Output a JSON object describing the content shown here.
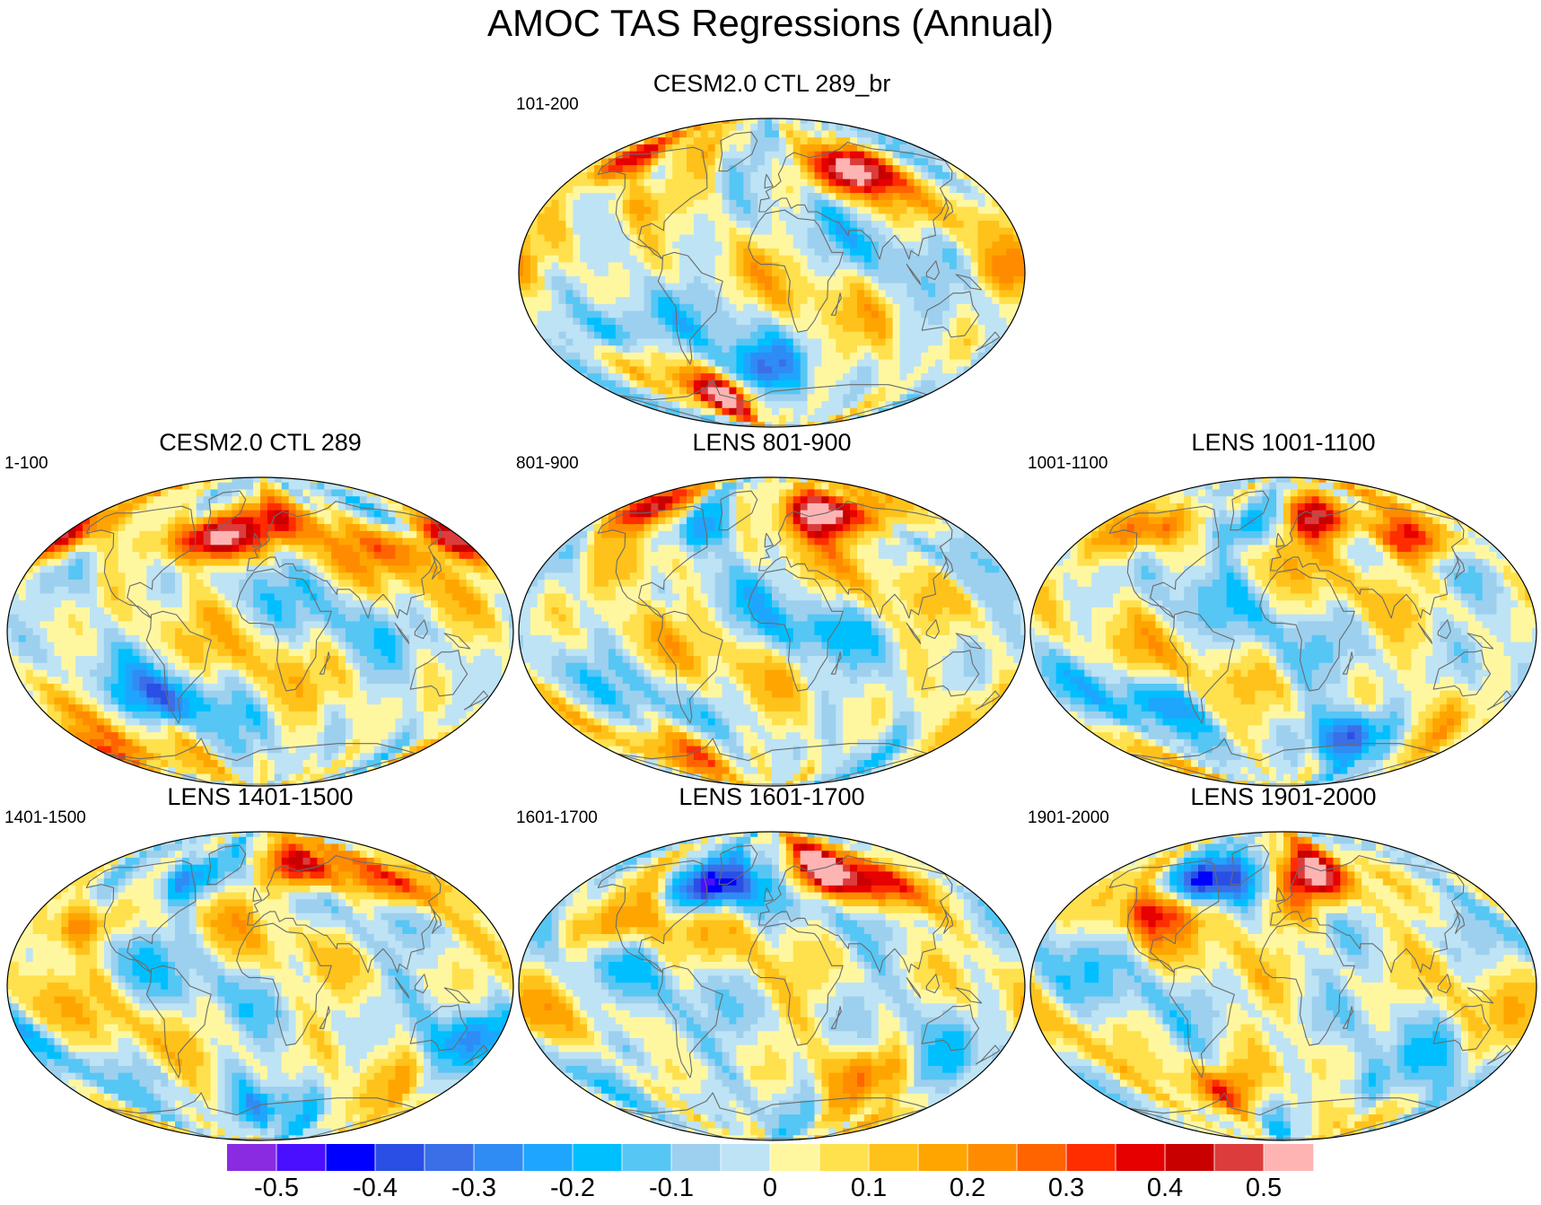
{
  "title": "AMOC TAS Regressions (Annual)",
  "panels": [
    {
      "id": "top",
      "title": "CESM2.0 CTL 289_br",
      "left_label": "101-200",
      "seed": 1,
      "hotspots": [
        {
          "lon": 75,
          "lat": 60,
          "v": 0.58
        },
        {
          "lon": -150,
          "lat": 65,
          "v": 0.42
        },
        {
          "lon": -110,
          "lat": 40,
          "v": 0.2
        },
        {
          "lon": -120,
          "lat": -35,
          "v": -0.22
        },
        {
          "lon": -60,
          "lat": -72,
          "v": 0.45
        },
        {
          "lon": -20,
          "lat": -58,
          "v": -0.28
        },
        {
          "lon": 160,
          "lat": 0,
          "v": 0.18
        },
        {
          "lon": -40,
          "lat": 60,
          "v": -0.06
        }
      ]
    },
    {
      "id": "c289",
      "title": "CESM2.0 CTL 289",
      "left_label": "1-100",
      "seed": 2,
      "hotspots": [
        {
          "lon": -40,
          "lat": 55,
          "v": 0.6
        },
        {
          "lon": 20,
          "lat": 65,
          "v": 0.35
        },
        {
          "lon": 110,
          "lat": 50,
          "v": 0.22
        },
        {
          "lon": -170,
          "lat": 55,
          "v": 0.22
        },
        {
          "lon": -80,
          "lat": -40,
          "v": -0.22
        },
        {
          "lon": -170,
          "lat": -72,
          "v": 0.32
        },
        {
          "lon": 170,
          "lat": 55,
          "v": 0.4
        },
        {
          "lon": -90,
          "lat": 70,
          "v": -0.12
        }
      ]
    },
    {
      "id": "l801",
      "title": "LENS 801-900",
      "left_label": "801-900",
      "seed": 3,
      "hotspots": [
        {
          "lon": 50,
          "lat": 70,
          "v": 0.62
        },
        {
          "lon": -60,
          "lat": 60,
          "v": -0.2
        },
        {
          "lon": 100,
          "lat": 70,
          "v": 0.4
        },
        {
          "lon": -140,
          "lat": 75,
          "v": 0.38
        },
        {
          "lon": -80,
          "lat": -72,
          "v": 0.28
        },
        {
          "lon": 30,
          "lat": 0,
          "v": -0.1
        },
        {
          "lon": -100,
          "lat": 40,
          "v": 0.15
        }
      ]
    },
    {
      "id": "l1001",
      "title": "LENS 1001-1100",
      "left_label": "1001-1100",
      "seed": 4,
      "hotspots": [
        {
          "lon": 40,
          "lat": 68,
          "v": 0.58
        },
        {
          "lon": -40,
          "lat": 62,
          "v": -0.25
        },
        {
          "lon": 110,
          "lat": 55,
          "v": 0.45
        },
        {
          "lon": -120,
          "lat": 60,
          "v": 0.3
        },
        {
          "lon": 60,
          "lat": -60,
          "v": -0.32
        },
        {
          "lon": -100,
          "lat": -40,
          "v": -0.15
        }
      ]
    },
    {
      "id": "l1401",
      "title": "LENS 1401-1500",
      "left_label": "1401-1500",
      "seed": 5,
      "hotspots": [
        {
          "lon": 40,
          "lat": 70,
          "v": 0.6
        },
        {
          "lon": -70,
          "lat": 62,
          "v": -0.3
        },
        {
          "lon": -140,
          "lat": 35,
          "v": 0.25
        },
        {
          "lon": 120,
          "lat": 60,
          "v": 0.3
        },
        {
          "lon": 0,
          "lat": -72,
          "v": -0.22
        },
        {
          "lon": 150,
          "lat": -30,
          "v": -0.15
        }
      ]
    },
    {
      "id": "l1601",
      "title": "LENS 1601-1700",
      "left_label": "1601-1700",
      "seed": 6,
      "hotspots": [
        {
          "lon": -55,
          "lat": 58,
          "v": -0.52
        },
        {
          "lon": 50,
          "lat": 68,
          "v": 0.58
        },
        {
          "lon": 100,
          "lat": 60,
          "v": 0.35
        },
        {
          "lon": -120,
          "lat": 35,
          "v": 0.22
        },
        {
          "lon": -100,
          "lat": -35,
          "v": -0.15
        },
        {
          "lon": 80,
          "lat": -50,
          "v": 0.12
        }
      ]
    },
    {
      "id": "l1901",
      "title": "LENS 1901-2000",
      "left_label": "1901-2000",
      "seed": 7,
      "hotspots": [
        {
          "lon": -75,
          "lat": 60,
          "v": -0.48
        },
        {
          "lon": 30,
          "lat": 65,
          "v": 0.5
        },
        {
          "lon": -100,
          "lat": 45,
          "v": 0.3
        },
        {
          "lon": -60,
          "lat": -62,
          "v": 0.35
        },
        {
          "lon": 0,
          "lat": 45,
          "v": 0.2
        },
        {
          "lon": 60,
          "lat": -60,
          "v": -0.2
        }
      ]
    }
  ],
  "colorbar": {
    "colors": [
      "#8a2be2",
      "#4b0fff",
      "#0000ff",
      "#2a4fe5",
      "#3a6fe8",
      "#2f8cf5",
      "#1ea6ff",
      "#00bfff",
      "#56c6f5",
      "#9dd0ee",
      "#bde3f5",
      "#fff7a0",
      "#ffe04d",
      "#ffc21a",
      "#ffa500",
      "#ff8c00",
      "#ff6400",
      "#ff2d00",
      "#e60000",
      "#c80000",
      "#dc3c3c",
      "#ffb4b4"
    ],
    "levels": [
      -0.55,
      -0.5,
      -0.45,
      -0.4,
      -0.35,
      -0.3,
      -0.25,
      -0.2,
      -0.15,
      -0.1,
      -0.05,
      0,
      0.05,
      0.1,
      0.15,
      0.2,
      0.25,
      0.3,
      0.35,
      0.4,
      0.45,
      0.5,
      0.55
    ],
    "ticks": [
      {
        "value": -0.5,
        "label": "-0.5"
      },
      {
        "value": -0.4,
        "label": "-0.4"
      },
      {
        "value": -0.3,
        "label": "-0.3"
      },
      {
        "value": -0.2,
        "label": "-0.2"
      },
      {
        "value": -0.1,
        "label": "-0.1"
      },
      {
        "value": 0,
        "label": "0"
      },
      {
        "value": 0.1,
        "label": "0.1"
      },
      {
        "value": 0.2,
        "label": "0.2"
      },
      {
        "value": 0.3,
        "label": "0.3"
      },
      {
        "value": 0.4,
        "label": "0.4"
      },
      {
        "value": 0.5,
        "label": "0.5"
      }
    ]
  },
  "continents": [
    [
      [
        -165,
        68
      ],
      [
        -160,
        70
      ],
      [
        -140,
        70
      ],
      [
        -120,
        72
      ],
      [
        -95,
        74
      ],
      [
        -80,
        72
      ],
      [
        -70,
        66
      ],
      [
        -60,
        58
      ],
      [
        -55,
        50
      ],
      [
        -66,
        44
      ],
      [
        -76,
        36
      ],
      [
        -81,
        30
      ],
      [
        -80,
        25
      ],
      [
        -90,
        29
      ],
      [
        -97,
        27
      ],
      [
        -97,
        20
      ],
      [
        -92,
        17
      ],
      [
        -84,
        11
      ],
      [
        -78,
        8
      ],
      [
        -82,
        12
      ],
      [
        -88,
        15
      ],
      [
        -95,
        16
      ],
      [
        -105,
        20
      ],
      [
        -110,
        24
      ],
      [
        -115,
        30
      ],
      [
        -120,
        35
      ],
      [
        -124,
        42
      ],
      [
        -125,
        50
      ],
      [
        -135,
        58
      ],
      [
        -150,
        60
      ],
      [
        -160,
        58
      ],
      [
        -165,
        62
      ]
    ],
    [
      [
        -78,
        10
      ],
      [
        -70,
        12
      ],
      [
        -60,
        10
      ],
      [
        -50,
        0
      ],
      [
        -35,
        -5
      ],
      [
        -38,
        -13
      ],
      [
        -41,
        -23
      ],
      [
        -48,
        -28
      ],
      [
        -58,
        -35
      ],
      [
        -65,
        -40
      ],
      [
        -68,
        -50
      ],
      [
        -72,
        -54
      ],
      [
        -74,
        -45
      ],
      [
        -73,
        -35
      ],
      [
        -70,
        -20
      ],
      [
        -76,
        -12
      ],
      [
        -81,
        -5
      ],
      [
        -78,
        2
      ]
    ],
    [
      [
        -17,
        15
      ],
      [
        -15,
        22
      ],
      [
        -10,
        30
      ],
      [
        -5,
        35
      ],
      [
        10,
        37
      ],
      [
        20,
        32
      ],
      [
        32,
        31
      ],
      [
        35,
        28
      ],
      [
        43,
        12
      ],
      [
        51,
        12
      ],
      [
        48,
        5
      ],
      [
        40,
        -5
      ],
      [
        40,
        -15
      ],
      [
        35,
        -22
      ],
      [
        32,
        -28
      ],
      [
        27,
        -34
      ],
      [
        20,
        -35
      ],
      [
        17,
        -30
      ],
      [
        12,
        -17
      ],
      [
        13,
        -5
      ],
      [
        9,
        4
      ],
      [
        0,
        5
      ],
      [
        -8,
        5
      ],
      [
        -13,
        8
      ]
    ],
    [
      [
        -10,
        36
      ],
      [
        -9,
        43
      ],
      [
        -2,
        44
      ],
      [
        -5,
        48
      ],
      [
        3,
        51
      ],
      [
        8,
        54
      ],
      [
        6,
        58
      ],
      [
        10,
        62
      ],
      [
        15,
        68
      ],
      [
        25,
        71
      ],
      [
        40,
        68
      ],
      [
        60,
        70
      ],
      [
        80,
        73
      ],
      [
        100,
        77
      ],
      [
        120,
        73
      ],
      [
        140,
        72
      ],
      [
        160,
        70
      ],
      [
        178,
        66
      ],
      [
        170,
        60
      ],
      [
        160,
        55
      ],
      [
        143,
        50
      ],
      [
        140,
        42
      ],
      [
        130,
        35
      ],
      [
        122,
        31
      ],
      [
        120,
        22
      ],
      [
        110,
        20
      ],
      [
        105,
        10
      ],
      [
        100,
        13
      ],
      [
        98,
        8
      ],
      [
        95,
        16
      ],
      [
        90,
        22
      ],
      [
        80,
        15
      ],
      [
        77,
        8
      ],
      [
        72,
        20
      ],
      [
        66,
        25
      ],
      [
        57,
        25
      ],
      [
        56,
        22
      ],
      [
        50,
        30
      ],
      [
        48,
        30
      ],
      [
        35,
        36
      ],
      [
        28,
        36
      ],
      [
        26,
        40
      ],
      [
        20,
        40
      ],
      [
        15,
        38
      ],
      [
        12,
        44
      ],
      [
        8,
        44
      ],
      [
        3,
        42
      ],
      [
        -5,
        36
      ]
    ],
    [
      [
        114,
        -22
      ],
      [
        122,
        -18
      ],
      [
        130,
        -12
      ],
      [
        137,
        -12
      ],
      [
        142,
        -11
      ],
      [
        146,
        -19
      ],
      [
        153,
        -25
      ],
      [
        150,
        -37
      ],
      [
        140,
        -38
      ],
      [
        135,
        -34
      ],
      [
        130,
        -32
      ],
      [
        115,
        -34
      ],
      [
        114,
        -26
      ]
    ],
    [
      [
        -50,
        60
      ],
      [
        -42,
        60
      ],
      [
        -22,
        70
      ],
      [
        -20,
        78
      ],
      [
        -35,
        83
      ],
      [
        -60,
        82
      ],
      [
        -70,
        78
      ],
      [
        -55,
        70
      ]
    ],
    [
      [
        -180,
        -72
      ],
      [
        -150,
        -75
      ],
      [
        -100,
        -73
      ],
      [
        -70,
        -68
      ],
      [
        -58,
        -63
      ],
      [
        -60,
        -72
      ],
      [
        -30,
        -76
      ],
      [
        0,
        -70
      ],
      [
        40,
        -68
      ],
      [
        80,
        -66
      ],
      [
        120,
        -66
      ],
      [
        160,
        -70
      ],
      [
        180,
        -72
      ],
      [
        180,
        -90
      ],
      [
        -180,
        -90
      ]
    ],
    [
      [
        -6,
        50
      ],
      [
        1,
        51
      ],
      [
        -3,
        56
      ],
      [
        -5,
        58
      ],
      [
        -6,
        54
      ]
    ],
    [
      [
        130,
        31
      ],
      [
        135,
        34
      ],
      [
        140,
        36
      ],
      [
        142,
        40
      ],
      [
        141,
        45
      ],
      [
        138,
        38
      ],
      [
        132,
        33
      ]
    ],
    [
      [
        44,
        -25
      ],
      [
        50,
        -15
      ],
      [
        49,
        -12
      ],
      [
        47,
        -25
      ]
    ],
    [
      [
        96,
        5
      ],
      [
        105,
        -5
      ],
      [
        106,
        -7
      ],
      [
        101,
        -2
      ]
    ],
    [
      [
        110,
        0
      ],
      [
        117,
        7
      ],
      [
        119,
        0
      ],
      [
        116,
        -4
      ],
      [
        110,
        -2
      ]
    ],
    [
      [
        131,
        -1
      ],
      [
        141,
        -3
      ],
      [
        150,
        -10
      ],
      [
        142,
        -9
      ],
      [
        137,
        -5
      ]
    ],
    [
      [
        172,
        -35
      ],
      [
        178,
        -38
      ],
      [
        175,
        -41
      ],
      [
        168,
        -46
      ],
      [
        170,
        -44
      ]
    ]
  ]
}
